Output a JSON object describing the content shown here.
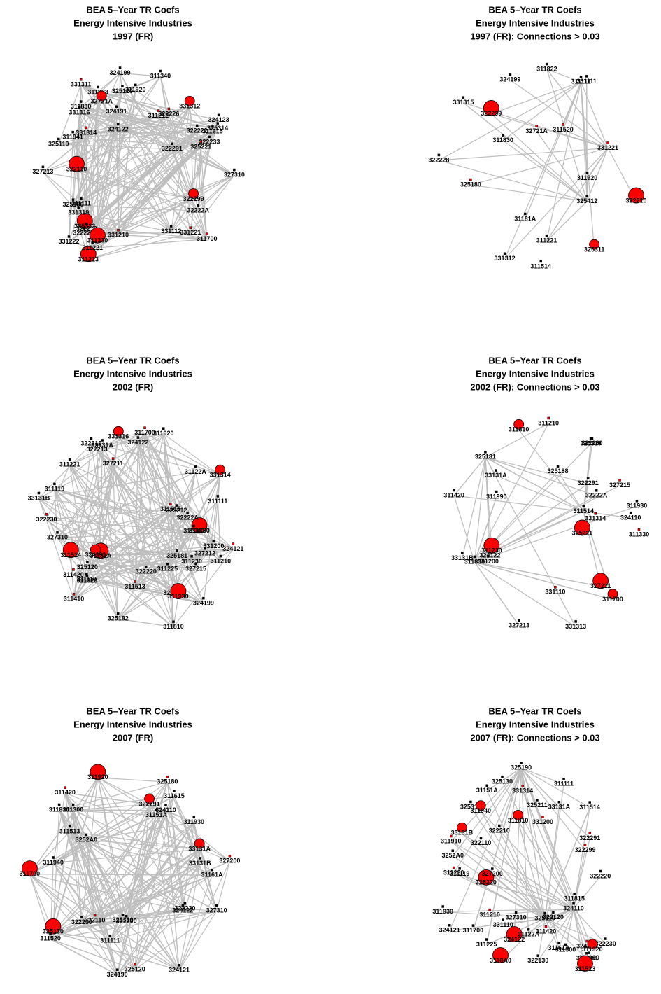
{
  "panels": [
    {
      "title": [
        "BEA 5–Year TR Coefs",
        "Energy Intensive Industries",
        "1997 (FR)"
      ],
      "nodes": [
        "327310",
        "331210",
        "325120",
        "311213",
        "311920",
        "311823",
        "311212",
        "331222",
        "324122",
        "32721A",
        "325314",
        "331221",
        "311615",
        "311830",
        "324123",
        "325312",
        "322226",
        "331112",
        "325180",
        "322233",
        "324199",
        "322299",
        "325110",
        "311111",
        "322291",
        "322210",
        "331311",
        "322110",
        "331319",
        "322225",
        "311221",
        "331314",
        "322222",
        "331312",
        "331316",
        "327213",
        "325221",
        "324191",
        "311941",
        "311330",
        "311340",
        "311700",
        "32222A"
      ]
    },
    {
      "title": [
        "BEA 5–Year TR Coefs",
        "Energy Intensive Industries",
        "1997 (FR): Connections > 0.03"
      ],
      "nodes": [
        "331315",
        "331221",
        "331111",
        "322299",
        "311830",
        "31181A",
        "311520",
        "311514",
        "311221",
        "325311",
        "331312",
        "32721A",
        "311111",
        "311822",
        "325412",
        "322210",
        "325180",
        "322228",
        "324199",
        "311920"
      ]
    },
    {
      "title": [
        "BEA 5–Year TR Coefs",
        "Energy Intensive Industries",
        "2002 (FR)"
      ],
      "nodes": [
        "327310",
        "311700",
        "33131A",
        "311830",
        "324122",
        "331200",
        "311615",
        "311111",
        "33131B",
        "331314",
        "311210",
        "311410",
        "327215",
        "311230",
        "311110",
        "31181A",
        "311420",
        "311920",
        "327212",
        "311119",
        "311225",
        "324191",
        "325182",
        "311810",
        "31122A",
        "325188",
        "327211",
        "311514",
        "325120",
        "311940",
        "311221",
        "324121",
        "325181",
        "331316",
        "327213",
        "325212",
        "311513",
        "311320",
        "322220",
        "311930",
        "32222A",
        "322230",
        "324199",
        "322210"
      ]
    },
    {
      "title": [
        "BEA 5–Year TR Coefs",
        "Energy Intensive Industries",
        "2002 (FR): Connections > 0.03"
      ],
      "nodes": [
        "331200",
        "331110",
        "311930",
        "327211",
        "311420",
        "311990",
        "327215",
        "327213",
        "311514",
        "311810",
        "311830",
        "311210",
        "322230",
        "322291",
        "324122",
        "311230",
        "311330",
        "325310",
        "32222A",
        "325181",
        "325188",
        "311700",
        "324110",
        "331313",
        "33131B",
        "33131A",
        "331314",
        "325211"
      ]
    },
    {
      "title": [
        "BEA 5–Year TR Coefs",
        "Energy Intensive Industries",
        "2007 (FR)"
      ],
      "nodes": [
        "327310",
        "327200",
        "324121",
        "311920",
        "311111",
        "33131B",
        "311420",
        "311615",
        "324122",
        "33131A",
        "31161A",
        "325120",
        "331200",
        "311940",
        "325310",
        "325130",
        "325180",
        "322230",
        "324110",
        "322220",
        "311300",
        "322291",
        "3252A0",
        "324190",
        "311513",
        "311520",
        "322110",
        "311700",
        "311930",
        "31151A",
        "311810"
      ]
    },
    {
      "title": [
        "BEA 5–Year TR Coefs",
        "Energy Intensive Industries",
        "2007 (FR): Connections > 0.03"
      ],
      "nodes": [
        "311990",
        "322299",
        "325130",
        "325320",
        "322110",
        "322230",
        "311210",
        "322120",
        "322130",
        "311810",
        "325180",
        "322291",
        "325110",
        "325190",
        "311300",
        "3118A0",
        "324190",
        "322210",
        "325310",
        "3252A0",
        "311930",
        "311920",
        "327310",
        "325211",
        "324110",
        "322220",
        "311230",
        "324122",
        "31151A",
        "311225",
        "324121",
        "311420",
        "311514",
        "311940",
        "311119",
        "327200",
        "311910",
        "31122A",
        "311111",
        "311513",
        "311700",
        "331200",
        "31161A",
        "311815",
        "331110",
        "33131B",
        "331314",
        "33131A"
      ]
    }
  ]
}
